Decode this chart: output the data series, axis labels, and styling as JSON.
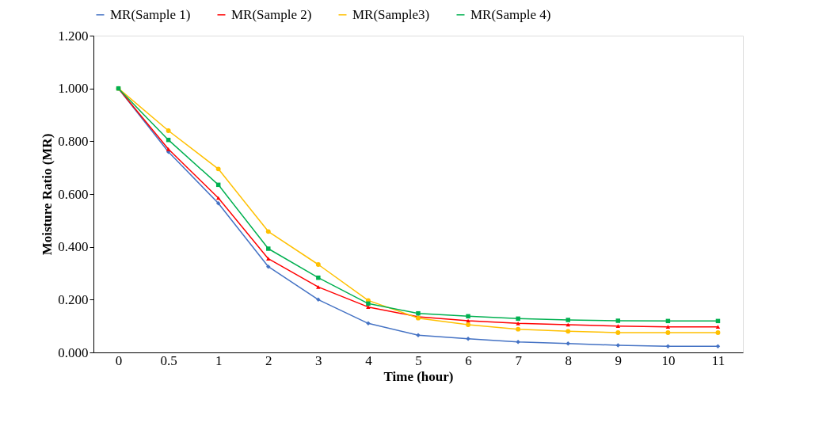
{
  "chart_data": {
    "type": "line",
    "xlabel": "Time (hour)",
    "ylabel": "Moisture Ratio (MR)",
    "categories": [
      "0",
      "0.5",
      "1",
      "2",
      "3",
      "4",
      "5",
      "6",
      "7",
      "8",
      "9",
      "10",
      "11"
    ],
    "series": [
      {
        "name": "MR(Sample 1)",
        "color": "#4472c4",
        "marker": "diamond",
        "values": [
          1.0,
          0.76,
          0.565,
          0.325,
          0.2,
          0.11,
          0.065,
          0.052,
          0.04,
          0.034,
          0.027,
          0.023,
          0.023
        ]
      },
      {
        "name": "MR(Sample 2)",
        "color": "#ff0000",
        "marker": "triangle",
        "values": [
          1.0,
          0.77,
          0.585,
          0.355,
          0.248,
          0.172,
          0.135,
          0.12,
          0.11,
          0.105,
          0.1,
          0.097,
          0.097
        ]
      },
      {
        "name": "MR(Sample3)",
        "color": "#ffc000",
        "marker": "circle",
        "values": [
          1.0,
          0.84,
          0.695,
          0.458,
          0.333,
          0.197,
          0.13,
          0.105,
          0.088,
          0.08,
          0.075,
          0.075,
          0.075
        ]
      },
      {
        "name": "MR(Sample 4)",
        "color": "#00b050",
        "marker": "square",
        "values": [
          1.0,
          0.805,
          0.635,
          0.393,
          0.283,
          0.185,
          0.148,
          0.137,
          0.128,
          0.123,
          0.12,
          0.119,
          0.119
        ]
      }
    ],
    "ylim": [
      0,
      1.2
    ],
    "yticks": [
      {
        "value": 0,
        "label": "0.000"
      },
      {
        "value": 0.2,
        "label": "0.200"
      },
      {
        "value": 0.4,
        "label": "0.400"
      },
      {
        "value": 0.6,
        "label": "0.600"
      },
      {
        "value": 0.8,
        "label": "0.800"
      },
      {
        "value": 1.0,
        "label": "1.000"
      },
      {
        "value": 1.2,
        "label": "1.200"
      }
    ],
    "grid": false,
    "legend": "top",
    "line_style": "solid"
  }
}
